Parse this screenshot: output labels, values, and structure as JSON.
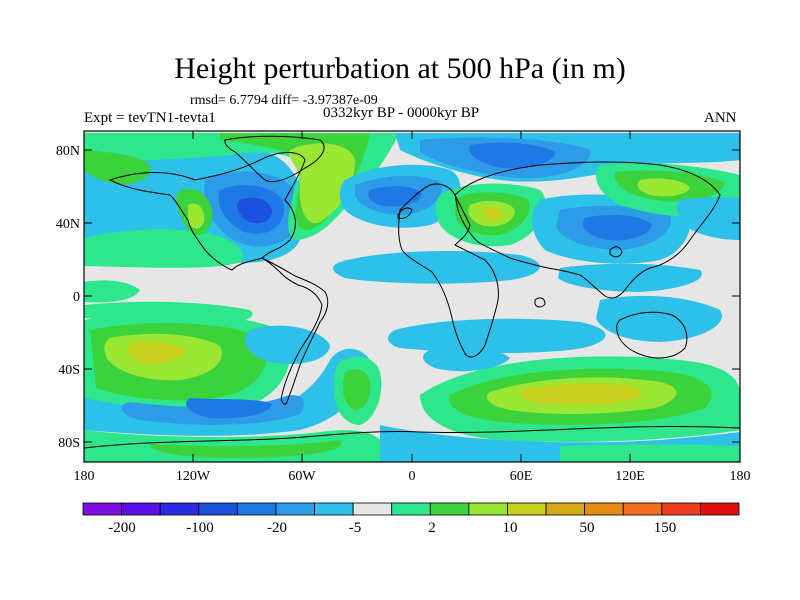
{
  "title": "Height perturbation at 500 hPa (in m)",
  "stats": "rmsd= 6.7794 diff= -3.97387e-09",
  "period": "0332kyr BP - 0000kyr BP",
  "experiment": "Expt = tevTN1-tevta1",
  "season": "ANN",
  "map": {
    "lat_labels": [
      "80N",
      "40N",
      "0",
      "40S",
      "80S"
    ],
    "lon_labels": [
      "180",
      "120W",
      "60W",
      "0",
      "60E",
      "120E",
      "180"
    ]
  },
  "colorbar": {
    "colors": [
      "#7d10e0",
      "#5a10e6",
      "#2a2ae0",
      "#1e50e0",
      "#1e78e6",
      "#2d9be8",
      "#2dc0e8",
      "#e6e6e6",
      "#2ee68c",
      "#3cd23c",
      "#9be632",
      "#c8d21e",
      "#d2aa14",
      "#e68c14",
      "#f06e1e",
      "#f03c1e",
      "#e01010"
    ],
    "labels": [
      "-200",
      "-100",
      "-20",
      "-5",
      "2",
      "10",
      "50",
      "150"
    ]
  },
  "field_regions": [
    {
      "region": "Greenland / North Atlantic",
      "level": "10 to 50"
    },
    {
      "region": "North America",
      "level": "-20 to -5"
    },
    {
      "region": "Middle East",
      "level": "10 to 50"
    },
    {
      "region": "South Pacific",
      "level": "10 to 50"
    },
    {
      "region": "Southern Indian Ocean",
      "level": "10 to 50"
    },
    {
      "region": "Tropics",
      "level": "-5 to 2"
    }
  ]
}
